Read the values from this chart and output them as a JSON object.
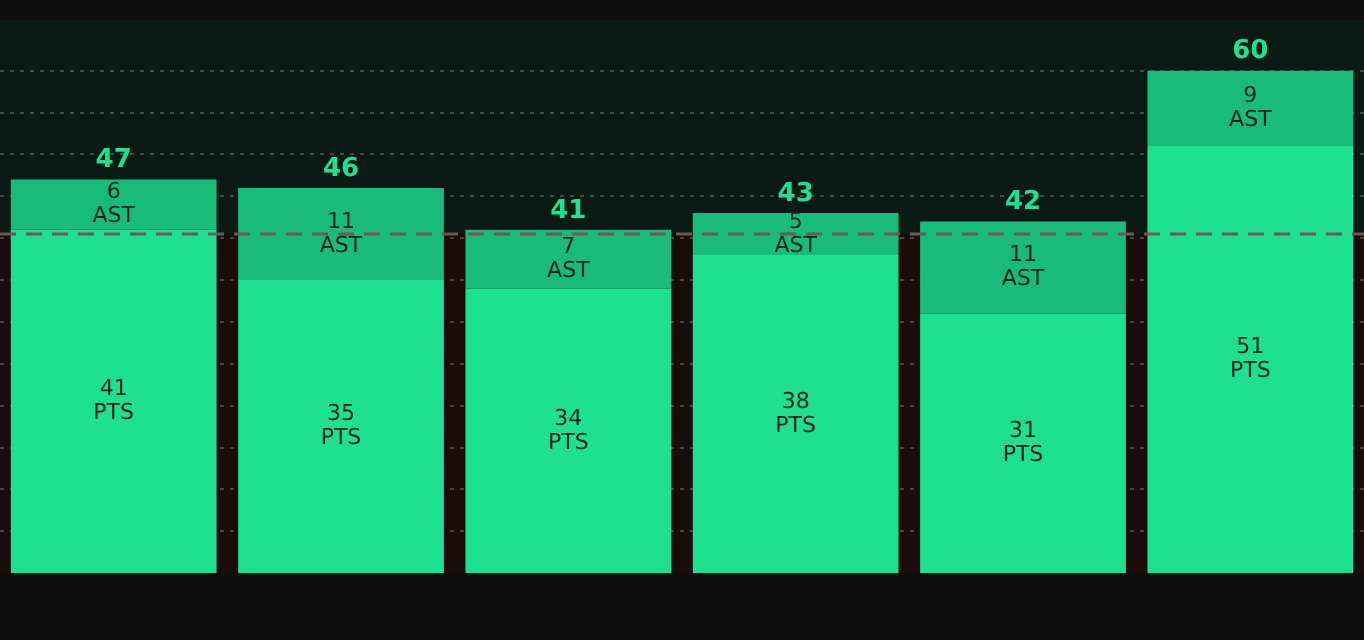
{
  "chart_data": {
    "type": "bar",
    "stacked": true,
    "categories": [
      null,
      null,
      null,
      null,
      null,
      null
    ],
    "series": [
      {
        "name": "PTS",
        "color": "#1ee090",
        "values": [
          41,
          35,
          34,
          38,
          31,
          51
        ]
      },
      {
        "name": "AST",
        "color": "#18bb7a",
        "values": [
          6,
          11,
          7,
          5,
          11,
          9
        ]
      }
    ],
    "totals": [
      "47",
      "46",
      "41",
      "43",
      "42",
      "60"
    ],
    "data_labels": true,
    "ylim": [
      0,
      66
    ],
    "yticks": [
      {
        "value": 5,
        "label": null
      },
      {
        "value": 10,
        "label": null
      },
      {
        "value": 15,
        "label": null
      },
      {
        "value": 20,
        "label": null
      },
      {
        "value": 25,
        "label": null
      },
      {
        "value": 30,
        "label": null
      },
      {
        "value": 35,
        "label": null
      },
      {
        "value": 40,
        "label": null
      },
      {
        "value": 45,
        "label": null
      },
      {
        "value": 50,
        "label": null
      },
      {
        "value": 55,
        "label": null
      },
      {
        "value": 60,
        "label": null
      }
    ],
    "grid": "y",
    "legend": false,
    "ref_lines": [
      {
        "axis": "y",
        "value": 40.5,
        "color": "#6a5a5a",
        "line_style": "dashed"
      }
    ],
    "bands": [
      {
        "axis": "y",
        "from": 0,
        "to": 40.5,
        "color": "#1a0c0a"
      },
      {
        "axis": "y",
        "from": 40.5,
        "to": 66,
        "color": "#0c1a15"
      }
    ]
  }
}
